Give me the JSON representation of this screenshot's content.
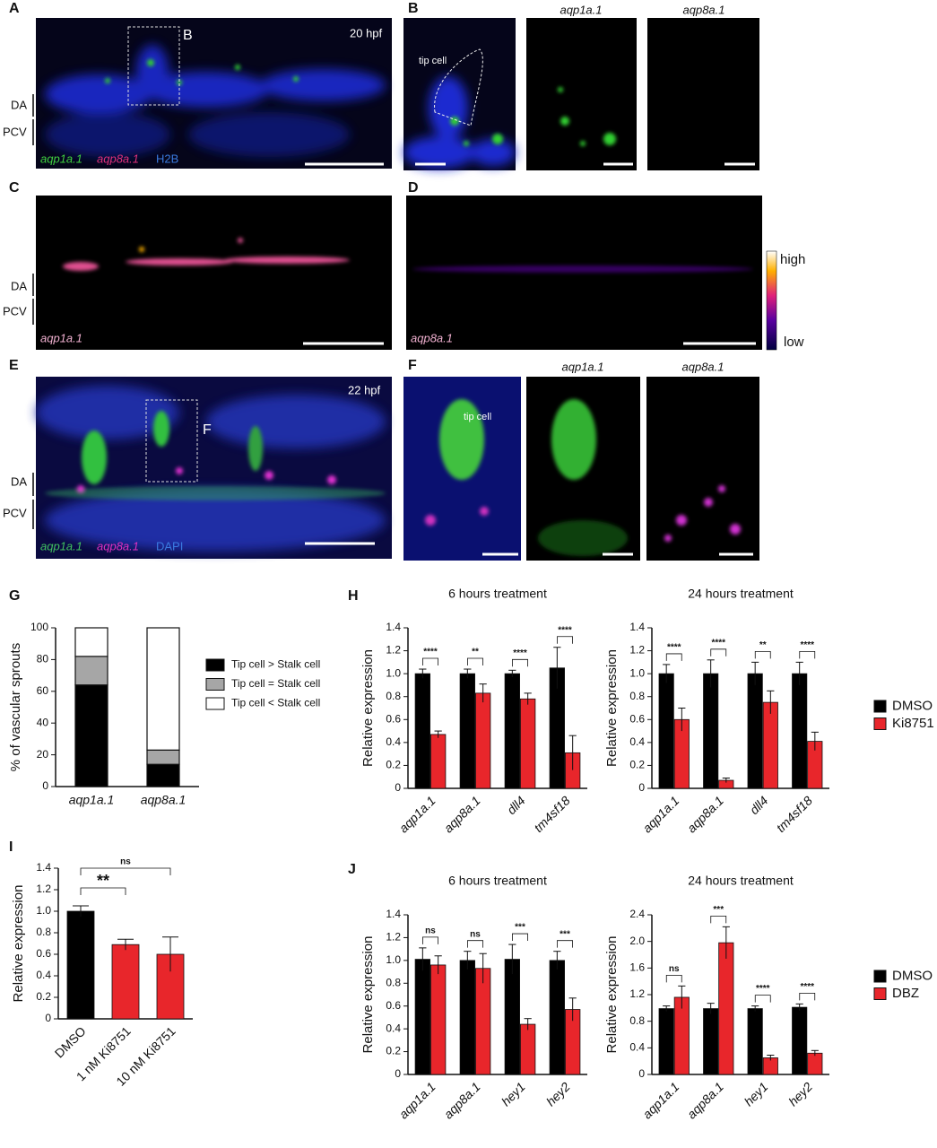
{
  "panels": {
    "A": {
      "letter": "A",
      "stage": "20 hpf",
      "inset": "B",
      "vessels": [
        "DA",
        "PCV"
      ],
      "stains": [
        "aqp1a.1",
        "aqp8a.1",
        "H2B"
      ]
    },
    "B": {
      "letter": "B",
      "cell": "tip cell",
      "channels": [
        "aqp1a.1",
        "aqp8a.1"
      ]
    },
    "C": {
      "letter": "C",
      "vessels": [
        "DA",
        "PCV"
      ],
      "gene": "aqp1a.1"
    },
    "D": {
      "letter": "D",
      "gene": "aqp8a.1",
      "scale": [
        "high",
        "low"
      ]
    },
    "E": {
      "letter": "E",
      "stage": "22 hpf",
      "inset": "F",
      "vessels": [
        "DA",
        "PCV"
      ],
      "stains": [
        "aqp1a.1",
        "aqp8a.1",
        "DAPI"
      ]
    },
    "F": {
      "letter": "F",
      "cell": "tip cell",
      "channels": [
        "aqp1a.1",
        "aqp8a.1"
      ]
    }
  },
  "chart_data": [
    {
      "panel": "G",
      "type": "stacked_bar",
      "ylabel": "% of vascular sprouts",
      "categories": [
        "aqp1a.1",
        "aqp8a.1"
      ],
      "series": [
        {
          "name": "Tip cell > Stalk cell",
          "color": "#000000",
          "values": [
            64,
            14
          ]
        },
        {
          "name": "Tip cell = Stalk cell",
          "color": "#a6a6a6",
          "values": [
            18,
            9
          ]
        },
        {
          "name": "Tip cell < Stalk cell",
          "color": "#ffffff",
          "values": [
            18,
            77
          ]
        }
      ],
      "ylim": [
        0,
        100
      ],
      "yticks": [
        0,
        20,
        40,
        60,
        80,
        100
      ],
      "legend": true
    },
    {
      "panel": "H",
      "type": "bar",
      "title": "6 hours treatment",
      "ylabel": "Relative expression",
      "categories": [
        "aqp1a.1",
        "aqp8a.1",
        "dll4",
        "tm4sf18"
      ],
      "series": [
        {
          "color": "#000000",
          "values": [
            1.0,
            1.0,
            1.0,
            1.05
          ],
          "errors": [
            0.04,
            0.04,
            0.03,
            0.18
          ]
        },
        {
          "color": "#e8262b",
          "values": [
            0.47,
            0.83,
            0.78,
            0.31
          ],
          "errors": [
            0.03,
            0.08,
            0.05,
            0.15
          ]
        }
      ],
      "significance": [
        "****",
        "**",
        "****",
        "****"
      ],
      "ylim": [
        0,
        1.4
      ],
      "yticks": [
        0,
        0.2,
        0.4,
        0.6,
        0.8,
        {
          "value": 1,
          "label": "1.0"
        },
        1.2,
        1.4
      ]
    },
    {
      "type": "bar",
      "title": "24 hours treatment",
      "ylabel": "Relative expression",
      "categories": [
        "aqp1a.1",
        "aqp8a.1",
        "dll4",
        "tm4sf18"
      ],
      "series": [
        {
          "name": "DMSO",
          "color": "#000000",
          "values": [
            1.0,
            1.0,
            1.0,
            1.0
          ],
          "errors": [
            0.08,
            0.12,
            0.1,
            0.1
          ]
        },
        {
          "name": "Ki8751",
          "color": "#e8262b",
          "values": [
            0.6,
            0.07,
            0.75,
            0.41
          ],
          "errors": [
            0.1,
            0.02,
            0.1,
            0.08
          ]
        }
      ],
      "significance": [
        "****",
        "****",
        "**",
        "****"
      ],
      "ylim": [
        0,
        1.4
      ],
      "yticks": [
        0,
        0.2,
        0.4,
        0.6,
        0.8,
        {
          "value": 1,
          "label": "1.0"
        },
        1.2,
        1.4
      ],
      "legend": true
    },
    {
      "panel": "I",
      "type": "bar",
      "ylabel": "Relative expression",
      "categories": [
        "DMSO",
        "1 nM Ki8751",
        "10 nM Ki8751"
      ],
      "values": [
        1.0,
        0.69,
        0.6
      ],
      "errors": [
        0.05,
        0.05,
        0.16
      ],
      "colors": [
        "#000000",
        "#e8262b",
        "#e8262b"
      ],
      "significance": [
        "**",
        "ns"
      ],
      "ylim": [
        0,
        1.4
      ],
      "yticks": [
        0,
        0.2,
        0.4,
        0.6,
        0.8,
        {
          "value": 1,
          "label": "1.0"
        },
        1.2,
        1.4
      ]
    },
    {
      "panel": "J",
      "type": "bar",
      "title": "6 hours treatment",
      "ylabel": "Relative expression",
      "categories": [
        "aqp1a.1",
        "aqp8a.1",
        "hey1",
        "hey2"
      ],
      "series": [
        {
          "color": "#000000",
          "values": [
            1.01,
            1.0,
            1.01,
            1.0
          ],
          "errors": [
            0.1,
            0.08,
            0.13,
            0.08
          ]
        },
        {
          "color": "#e8262b",
          "values": [
            0.96,
            0.93,
            0.44,
            0.57
          ],
          "errors": [
            0.08,
            0.13,
            0.05,
            0.1
          ]
        }
      ],
      "significance": [
        "ns",
        "ns",
        "***",
        "***"
      ],
      "ylim": [
        0,
        1.4
      ],
      "yticks": [
        0,
        0.2,
        0.4,
        0.6,
        0.8,
        {
          "value": 1,
          "label": "1.0"
        },
        1.2,
        1.4
      ]
    },
    {
      "type": "bar",
      "title": "24 hours treatment",
      "ylabel": "Relative expression",
      "categories": [
        "aqp1a.1",
        "aqp8a.1",
        "hey1",
        "hey2"
      ],
      "series": [
        {
          "name": "DMSO",
          "color": "#000000",
          "values": [
            0.99,
            0.99,
            0.99,
            1.01
          ],
          "errors": [
            0.04,
            0.08,
            0.04,
            0.05
          ]
        },
        {
          "name": "DBZ",
          "color": "#e8262b",
          "values": [
            1.16,
            1.98,
            0.25,
            0.32
          ],
          "errors": [
            0.17,
            0.24,
            0.04,
            0.04
          ]
        }
      ],
      "significance": [
        "ns",
        "***",
        "****",
        "****"
      ],
      "ylim": [
        0,
        2.4
      ],
      "yticks": [
        0,
        0.4,
        0.8,
        1.2,
        1.6,
        {
          "value": 2,
          "label": "2.0"
        },
        2.4
      ],
      "legend": true
    }
  ]
}
